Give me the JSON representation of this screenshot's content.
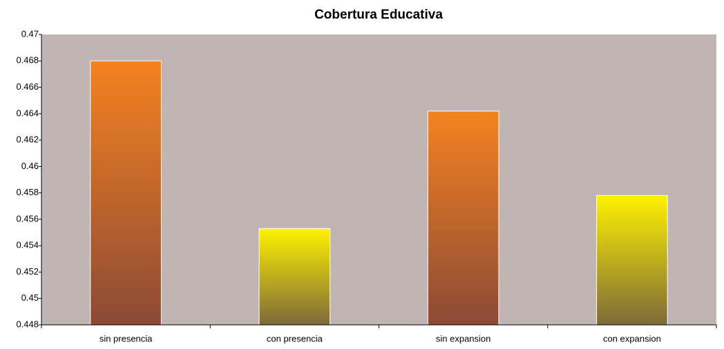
{
  "chart_data": {
    "type": "bar",
    "title": "Cobertura Educativa",
    "categories": [
      "sin presencia",
      "con presencia",
      "sin expansion",
      "con expansion"
    ],
    "values": [
      0.468,
      0.4553,
      0.4642,
      0.4578
    ],
    "colors": [
      "#f58220",
      "#fff200",
      "#f58220",
      "#fff200"
    ],
    "ylim": [
      0.448,
      0.47
    ],
    "yticks": [
      0.448,
      0.45,
      0.452,
      0.454,
      0.456,
      0.458,
      0.46,
      0.462,
      0.464,
      0.466,
      0.468,
      0.47
    ],
    "grid": false
  }
}
